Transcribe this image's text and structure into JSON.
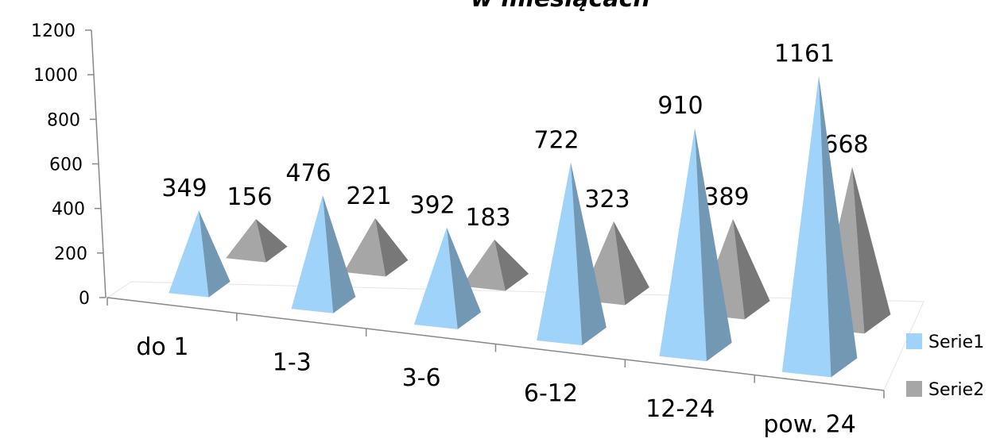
{
  "chart_data": {
    "type": "pyramid3d",
    "title": "w miesiącach",
    "categories": [
      "do 1",
      "1-3",
      "3-6",
      "6-12",
      "12-24",
      "pow. 24"
    ],
    "series": [
      {
        "name": "Serie1",
        "color": "#9fd3fa",
        "values": [
          349,
          476,
          392,
          722,
          910,
          1161
        ]
      },
      {
        "name": "Serie2",
        "color": "#a6a6a6",
        "values": [
          156,
          221,
          183,
          323,
          389,
          668
        ]
      }
    ],
    "ylim": [
      0,
      1200
    ],
    "yticks": [
      0,
      200,
      400,
      600,
      800,
      1000,
      1200
    ],
    "legend": "right"
  }
}
